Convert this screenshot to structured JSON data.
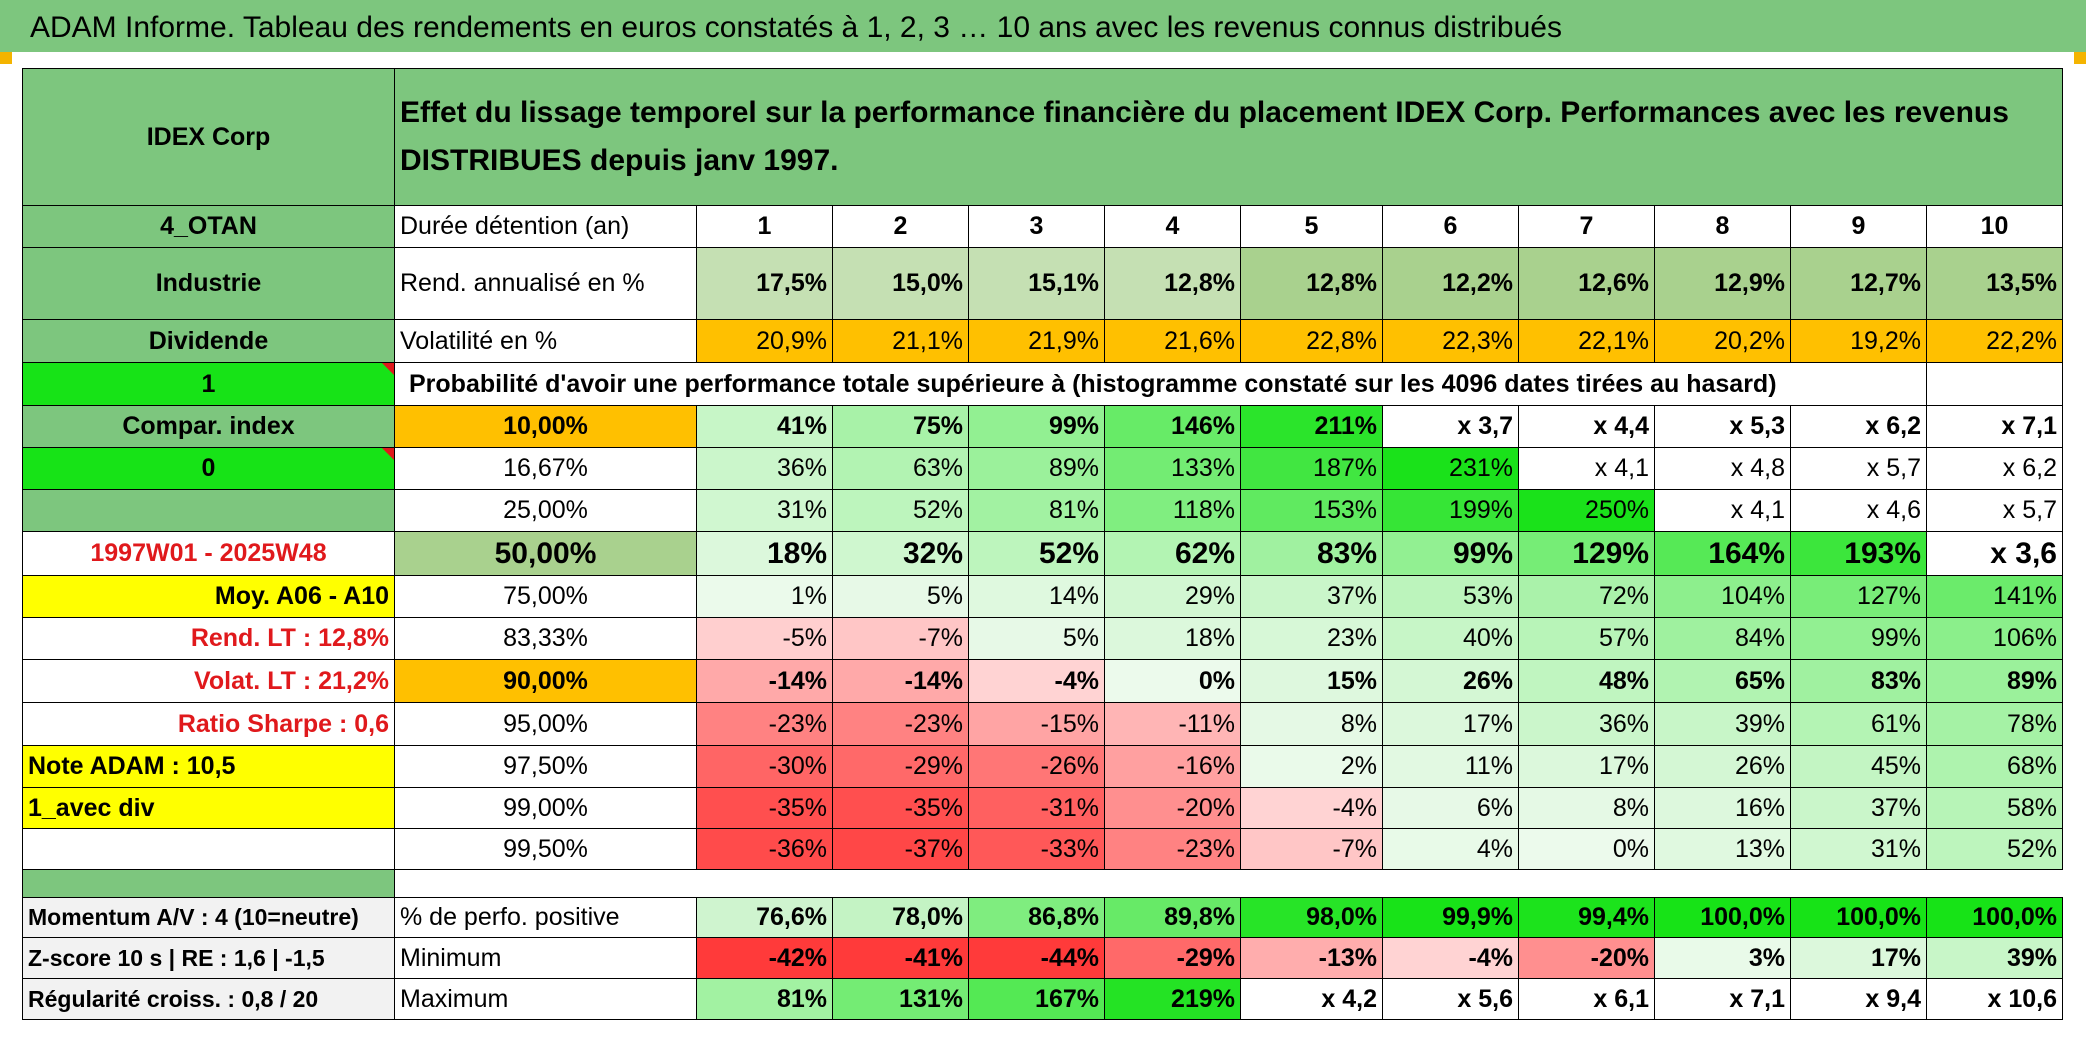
{
  "title": "ADAM Informe. Tableau des rendements en euros constatés à 1, 2, 3 … 10 ans avec les revenus connus distribués",
  "header": {
    "name": "IDEX Corp",
    "description": "Effet du lissage temporel sur la performance financière du placement IDEX Corp. Performances avec les revenus DISTRIBUES depuis janv 1997."
  },
  "side": {
    "code": "4_OTAN",
    "sector": "Industrie",
    "mode": "Dividende",
    "flag1": "1",
    "compar": "Compar. index",
    "flag0": "0",
    "period": "1997W01 - 2025W48",
    "moy": "Moy. A06 - A10",
    "rend_lt": "Rend. LT :    12,8%",
    "volat_lt": "Volat. LT :    21,2%",
    "sharpe": "Ratio Sharpe :    0,6",
    "note": "Note ADAM : 10,5",
    "avec_div": "1_avec div",
    "momentum": "Momentum A/V : 4 (10=neutre)",
    "zscore": "Z-score 10 s | RE : 1,6 | -1,5",
    "regularite": "Régularité croiss. : 0,8 / 20"
  },
  "rows": {
    "duree_label": "Durée détention (an)",
    "years": [
      "1",
      "2",
      "3",
      "4",
      "5",
      "6",
      "7",
      "8",
      "9",
      "10"
    ],
    "rend_label": "Rend. annualisé en %",
    "rend": [
      "17,5%",
      "15,0%",
      "15,1%",
      "12,8%",
      "12,8%",
      "12,2%",
      "12,6%",
      "12,9%",
      "12,7%",
      "13,5%"
    ],
    "vol_label": "Volatilité en %",
    "vol": [
      "20,9%",
      "21,1%",
      "21,9%",
      "21,6%",
      "22,8%",
      "22,3%",
      "22,1%",
      "20,2%",
      "19,2%",
      "22,2%"
    ],
    "proba_label": "Probabilité d'avoir une performance totale supérieure à (histogramme constaté sur les 4096 dates tirées au hasard)"
  },
  "quantiles": [
    {
      "q": "10,00%",
      "v": [
        "41%",
        "75%",
        "99%",
        "146%",
        "211%",
        "x 3,7",
        "x 4,4",
        "x 5,3",
        "x 6,2",
        "x 7,1"
      ]
    },
    {
      "q": "16,67%",
      "v": [
        "36%",
        "63%",
        "89%",
        "133%",
        "187%",
        "231%",
        "x 4,1",
        "x 4,8",
        "x 5,7",
        "x 6,2"
      ]
    },
    {
      "q": "25,00%",
      "v": [
        "31%",
        "52%",
        "81%",
        "118%",
        "153%",
        "199%",
        "250%",
        "x 4,1",
        "x 4,6",
        "x 5,7"
      ]
    },
    {
      "q": "50,00%",
      "v": [
        "18%",
        "32%",
        "52%",
        "62%",
        "83%",
        "99%",
        "129%",
        "164%",
        "193%",
        "x 3,6"
      ]
    },
    {
      "q": "75,00%",
      "v": [
        "1%",
        "5%",
        "14%",
        "29%",
        "37%",
        "53%",
        "72%",
        "104%",
        "127%",
        "141%"
      ]
    },
    {
      "q": "83,33%",
      "v": [
        "-5%",
        "-7%",
        "5%",
        "18%",
        "23%",
        "40%",
        "57%",
        "84%",
        "99%",
        "106%"
      ]
    },
    {
      "q": "90,00%",
      "v": [
        "-14%",
        "-14%",
        "-4%",
        "0%",
        "15%",
        "26%",
        "48%",
        "65%",
        "83%",
        "89%"
      ]
    },
    {
      "q": "95,00%",
      "v": [
        "-23%",
        "-23%",
        "-15%",
        "-11%",
        "8%",
        "17%",
        "36%",
        "39%",
        "61%",
        "78%"
      ]
    },
    {
      "q": "97,50%",
      "v": [
        "-30%",
        "-29%",
        "-26%",
        "-16%",
        "2%",
        "11%",
        "17%",
        "26%",
        "45%",
        "68%"
      ]
    },
    {
      "q": "99,00%",
      "v": [
        "-35%",
        "-35%",
        "-31%",
        "-20%",
        "-4%",
        "6%",
        "8%",
        "16%",
        "37%",
        "58%"
      ]
    },
    {
      "q": "99,50%",
      "v": [
        "-36%",
        "-37%",
        "-33%",
        "-23%",
        "-7%",
        "4%",
        "0%",
        "13%",
        "31%",
        "52%"
      ]
    }
  ],
  "stats": {
    "positive_label": "% de perfo. positive",
    "positive": [
      "76,6%",
      "78,0%",
      "86,8%",
      "89,8%",
      "98,0%",
      "99,9%",
      "99,4%",
      "100,0%",
      "100,0%",
      "100,0%"
    ],
    "min_label": "Minimum",
    "min": [
      "-42%",
      "-41%",
      "-44%",
      "-29%",
      "-13%",
      "-4%",
      "-20%",
      "3%",
      "17%",
      "39%"
    ],
    "max_label": "Maximum",
    "max": [
      "81%",
      "131%",
      "167%",
      "219%",
      "x 4,2",
      "x 5,6",
      "x 6,1",
      "x 7,1",
      "x 9,4",
      "x 10,6"
    ]
  },
  "colors": {
    "header_green": "#7dc67e",
    "lime": "#17e317",
    "yellow": "#ffff00",
    "orange": "#ffc000",
    "red_text": "#e0191c"
  }
}
